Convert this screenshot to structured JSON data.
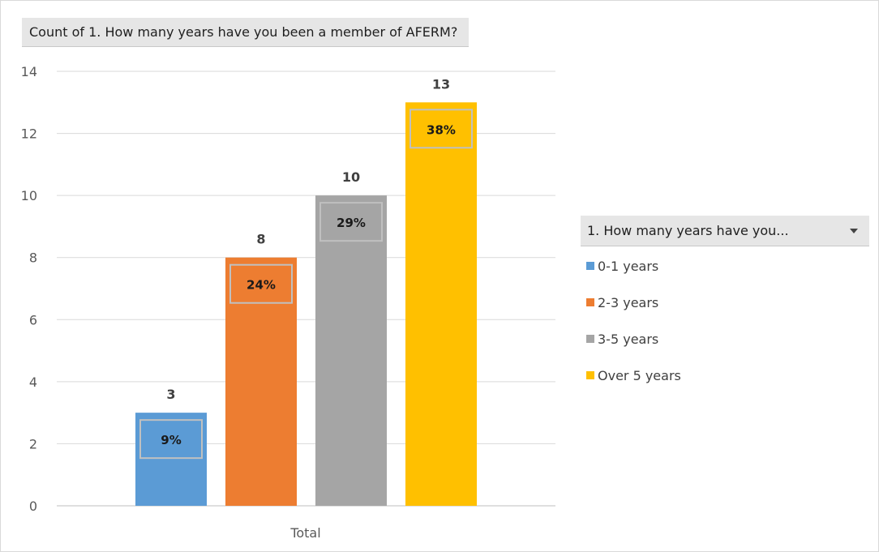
{
  "pivot": {
    "value_field": "Count of 1. How many years have you been a member of AFERM?",
    "legend_field": "1. How many years have you..."
  },
  "icons": {
    "legend_dropdown": "chevron-down-icon"
  },
  "chart_data": {
    "type": "bar",
    "title": "",
    "xlabel": "",
    "ylabel": "",
    "categories": [
      "Total"
    ],
    "series": [
      {
        "name": "0-1 years",
        "values": [
          3
        ],
        "percent": "9%",
        "color": "#5b9bd5"
      },
      {
        "name": "2-3 years",
        "values": [
          8
        ],
        "percent": "24%",
        "color": "#ed7d31"
      },
      {
        "name": "3-5 years",
        "values": [
          10
        ],
        "percent": "29%",
        "color": "#a5a5a5"
      },
      {
        "name": "Over 5 years",
        "values": [
          13
        ],
        "percent": "38%",
        "color": "#ffc000"
      }
    ],
    "ylim": [
      0,
      14
    ],
    "yticks": [
      0,
      2,
      4,
      6,
      8,
      10,
      12,
      14
    ],
    "grid": true,
    "legend_position": "right"
  }
}
